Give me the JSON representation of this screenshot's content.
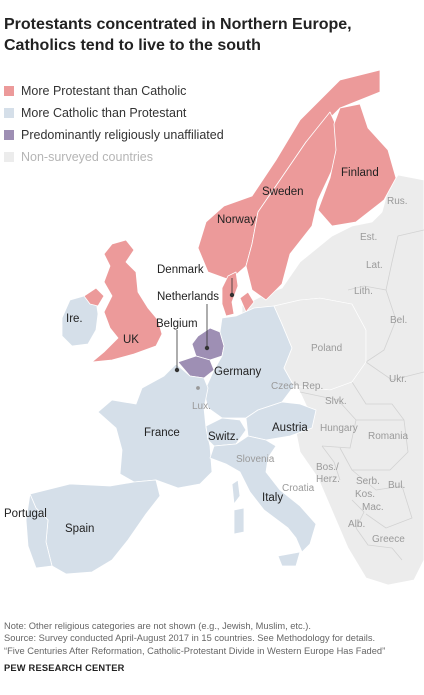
{
  "title": "Protestants concentrated in Northern Europe, Catholics tend to live to the south",
  "legend": [
    {
      "label": "More Protestant than Catholic",
      "color": "#ec9a9a"
    },
    {
      "label": "More Catholic than Protestant",
      "color": "#d5dfe9"
    },
    {
      "label": "Predominantly religiously unaffiliated",
      "color": "#9e8fb4"
    },
    {
      "label": "Non-surveyed countries",
      "color": "#ececec"
    }
  ],
  "colors": {
    "protestant": "#ec9a9a",
    "catholic": "#d5dfe9",
    "unaffiliated": "#9e8fb4",
    "non_surveyed": "#ececec",
    "border": "#ffffff"
  },
  "surveyed_labels": {
    "finland": "Finland",
    "sweden": "Sweden",
    "norway": "Norway",
    "denmark": "Denmark",
    "netherlands": "Netherlands",
    "belgium": "Belgium",
    "uk": "UK",
    "ireland": "Ire.",
    "germany": "Germany",
    "france": "France",
    "switzerland": "Switz.",
    "austria": "Austria",
    "italy": "Italy",
    "spain": "Spain",
    "portugal": "Portugal"
  },
  "other_labels": {
    "russia": "Rus.",
    "estonia": "Est.",
    "latvia": "Lat.",
    "lithuania": "Lith.",
    "belarus": "Bel.",
    "poland": "Poland",
    "ukraine": "Ukr.",
    "czech": "Czech Rep.",
    "slovakia": "Slvk.",
    "hungary": "Hungary",
    "romania": "Romania",
    "luxembourg": "Lux.",
    "slovenia": "Slovenia",
    "croatia": "Croatia",
    "bosnia": "Bos./ Herz.",
    "serbia": "Serb.",
    "kosovo": "Kos.",
    "bulgaria": "Bul.",
    "macedonia": "Mac.",
    "albania": "Alb.",
    "greece": "Greece"
  },
  "footer": {
    "note": "Note: Other religious categories are not shown (e.g., Jewish, Muslim, etc.).",
    "source": "Source: Survey conducted April-August 2017 in 15 countries. See Methodology for details.",
    "report": "“Five Centuries After Reformation, Catholic-Protestant Divide in Western Europe Has Faded”",
    "brand": "PEW RESEARCH CENTER"
  }
}
